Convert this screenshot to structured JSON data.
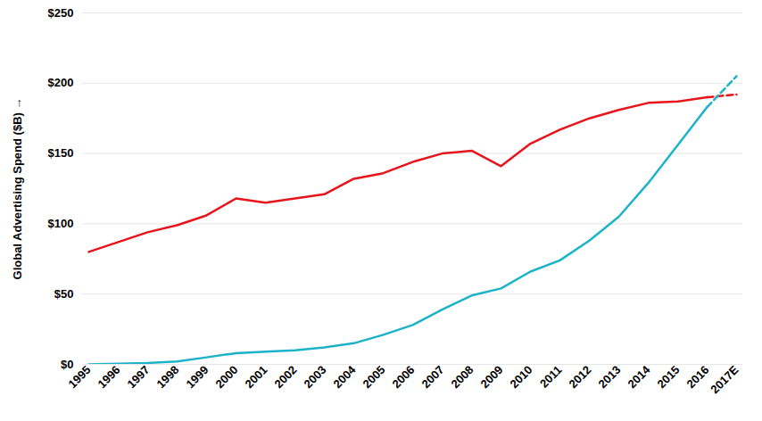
{
  "chart_data": {
    "type": "line",
    "y_label": "Global Advertising Spend ($B)",
    "categories": [
      "1995",
      "1996",
      "1997",
      "1998",
      "1999",
      "2000",
      "2001",
      "2002",
      "2003",
      "2004",
      "2005",
      "2006",
      "2007",
      "2008",
      "2009",
      "2010",
      "2011",
      "2012",
      "2013",
      "2014",
      "2015",
      "2016",
      "2017E"
    ],
    "series": [
      {
        "color": "#e8141b",
        "line_style": "solid",
        "values": [
          80,
          87,
          94,
          99,
          106,
          118,
          115,
          118,
          121,
          132,
          136,
          144,
          150,
          152,
          141,
          157,
          167,
          175,
          181,
          186,
          187,
          190,
          null
        ]
      },
      {
        "color": "#e8141b",
        "line_style": "dashed",
        "values": [
          null,
          null,
          null,
          null,
          null,
          null,
          null,
          null,
          null,
          null,
          null,
          null,
          null,
          null,
          null,
          null,
          null,
          null,
          null,
          null,
          null,
          190,
          192
        ]
      },
      {
        "color": "#1cb3c8",
        "line_style": "solid",
        "values": [
          0,
          0.5,
          1,
          2,
          5,
          8,
          9,
          10,
          12,
          15,
          21,
          28,
          39,
          49,
          54,
          66,
          74,
          88,
          105,
          129,
          156,
          183,
          null
        ]
      },
      {
        "color": "#1cb3c8",
        "line_style": "dashed",
        "values": [
          null,
          null,
          null,
          null,
          null,
          null,
          null,
          null,
          null,
          null,
          null,
          null,
          null,
          null,
          null,
          null,
          null,
          null,
          null,
          null,
          null,
          183,
          205
        ]
      }
    ],
    "ylim": [
      0,
      250
    ],
    "yticks": [
      {
        "value": 0,
        "label": "$0"
      },
      {
        "value": 50,
        "label": "$50"
      },
      {
        "value": 100,
        "label": "$100"
      },
      {
        "value": 150,
        "label": "$150"
      },
      {
        "value": 200,
        "label": "$200"
      },
      {
        "value": 250,
        "label": "$250"
      }
    ],
    "grid": true
  }
}
